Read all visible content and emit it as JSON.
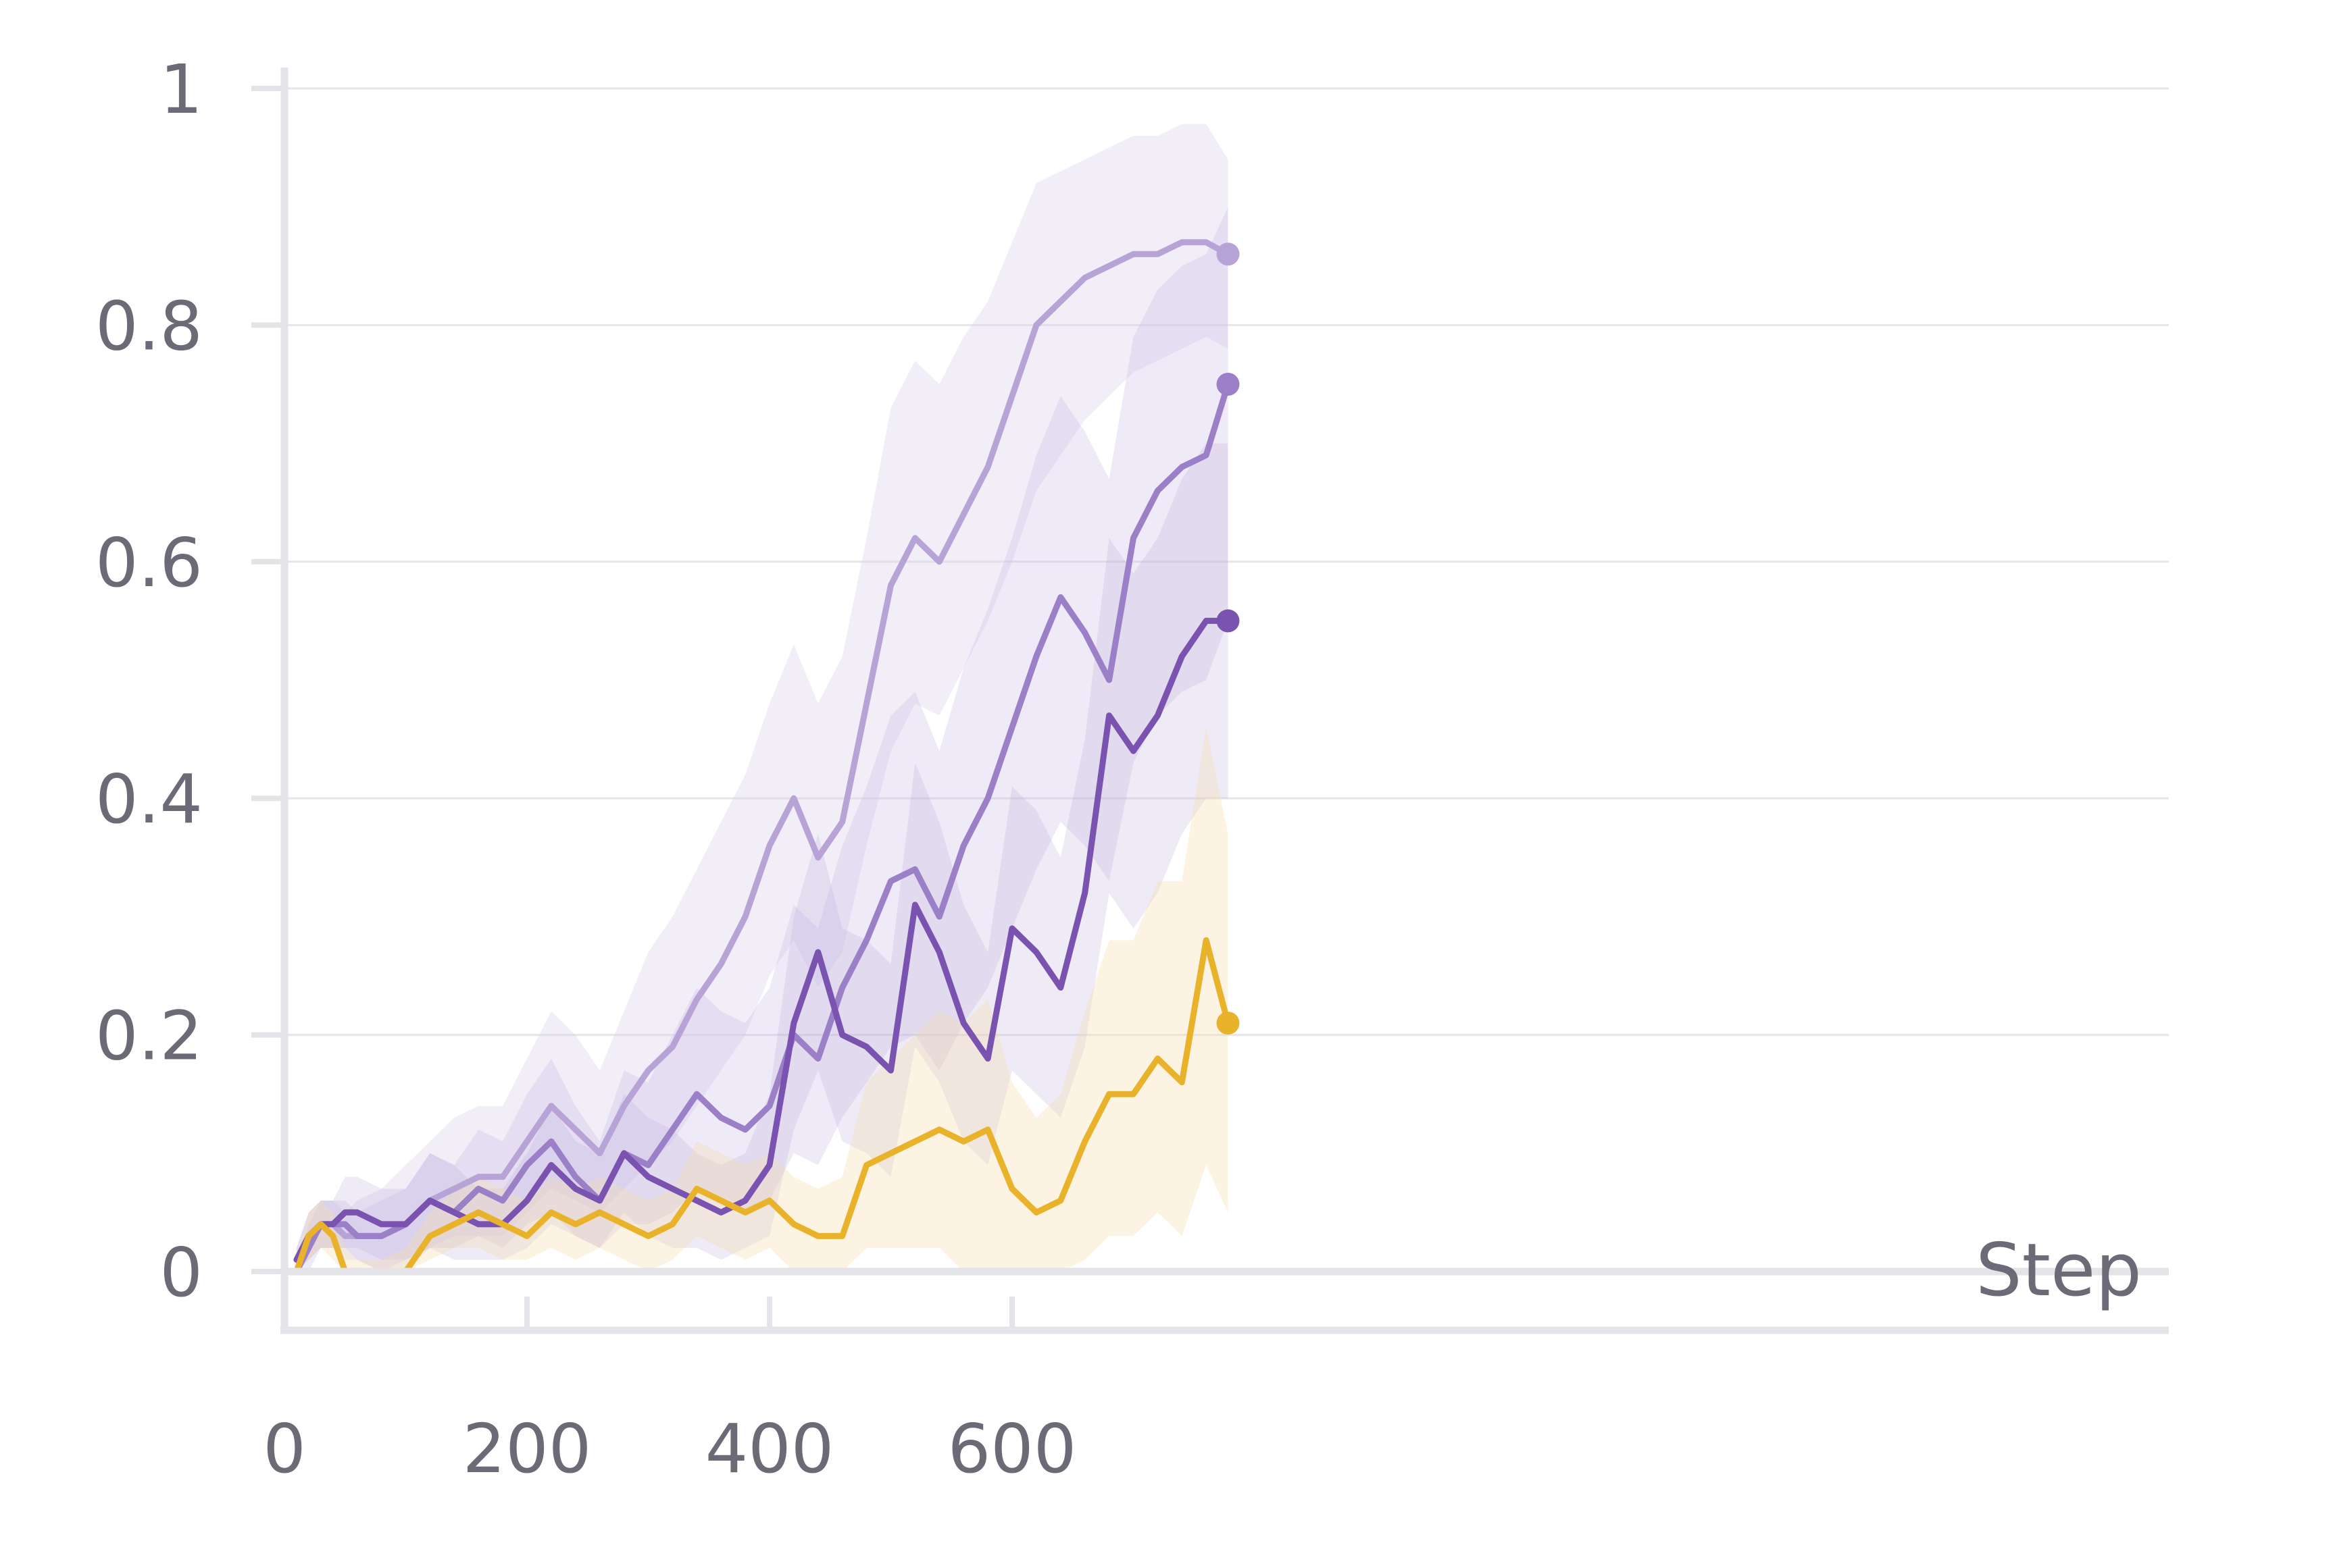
{
  "chart_data": {
    "type": "line",
    "xlabel": "Step",
    "ylabel": "",
    "xlim": [
      0,
      780
    ],
    "ylim": [
      -0.05,
      1.02
    ],
    "grid": "horizontal",
    "x_ticks": [
      0,
      200,
      400,
      600
    ],
    "y_ticks": [
      0,
      0.2,
      0.4,
      0.6,
      0.8,
      1
    ],
    "x_tick_labels": [
      "0",
      "200",
      "400",
      "600"
    ],
    "y_tick_labels": [
      "0",
      "0.2",
      "0.4",
      "0.6",
      "0.8",
      "1"
    ],
    "x": [
      10,
      20,
      30,
      40,
      50,
      60,
      80,
      100,
      120,
      140,
      160,
      180,
      200,
      220,
      240,
      260,
      280,
      300,
      320,
      340,
      360,
      380,
      400,
      420,
      440,
      460,
      480,
      500,
      520,
      540,
      560,
      580,
      600,
      620,
      640,
      660,
      680,
      700,
      720,
      740,
      760,
      778
    ],
    "series": [
      {
        "color": "#b7a3d6",
        "band_color": "#d8cdea",
        "band_opacity": 0.35,
        "y": [
          0.0,
          0.03,
          0.04,
          0.04,
          0.03,
          0.03,
          0.03,
          0.04,
          0.06,
          0.07,
          0.08,
          0.08,
          0.11,
          0.14,
          0.12,
          0.1,
          0.14,
          0.17,
          0.19,
          0.23,
          0.26,
          0.3,
          0.36,
          0.4,
          0.35,
          0.38,
          0.48,
          0.58,
          0.62,
          0.6,
          0.64,
          0.68,
          0.74,
          0.8,
          0.82,
          0.84,
          0.85,
          0.86,
          0.86,
          0.87,
          0.87,
          0.86
        ],
        "lower": [
          0.0,
          0.01,
          0.02,
          0.02,
          0.01,
          0.01,
          0.0,
          0.0,
          0.02,
          0.03,
          0.03,
          0.03,
          0.05,
          0.07,
          0.06,
          0.05,
          0.07,
          0.09,
          0.11,
          0.14,
          0.17,
          0.2,
          0.25,
          0.28,
          0.24,
          0.27,
          0.36,
          0.44,
          0.48,
          0.47,
          0.51,
          0.55,
          0.6,
          0.66,
          0.69,
          0.72,
          0.74,
          0.76,
          0.77,
          0.78,
          0.79,
          0.78
        ],
        "upper": [
          0.02,
          0.05,
          0.06,
          0.06,
          0.05,
          0.06,
          0.07,
          0.09,
          0.11,
          0.13,
          0.14,
          0.14,
          0.18,
          0.22,
          0.2,
          0.17,
          0.22,
          0.27,
          0.3,
          0.34,
          0.38,
          0.42,
          0.48,
          0.53,
          0.48,
          0.52,
          0.62,
          0.73,
          0.77,
          0.75,
          0.79,
          0.82,
          0.87,
          0.92,
          0.93,
          0.94,
          0.95,
          0.96,
          0.96,
          0.97,
          0.97,
          0.94
        ]
      },
      {
        "color": "#9b80c8",
        "band_color": "#cbbbe3",
        "band_opacity": 0.3,
        "y": [
          0.0,
          0.02,
          0.04,
          0.04,
          0.04,
          0.03,
          0.03,
          0.04,
          0.06,
          0.05,
          0.07,
          0.06,
          0.09,
          0.11,
          0.08,
          0.06,
          0.1,
          0.09,
          0.12,
          0.15,
          0.13,
          0.12,
          0.14,
          0.2,
          0.18,
          0.24,
          0.28,
          0.33,
          0.34,
          0.3,
          0.36,
          0.4,
          0.46,
          0.52,
          0.57,
          0.54,
          0.5,
          0.62,
          0.66,
          0.68,
          0.69,
          0.75
        ],
        "lower": [
          0.0,
          0.0,
          0.02,
          0.02,
          0.02,
          0.01,
          0.0,
          0.01,
          0.02,
          0.02,
          0.03,
          0.02,
          0.04,
          0.05,
          0.03,
          0.02,
          0.04,
          0.04,
          0.05,
          0.07,
          0.06,
          0.05,
          0.06,
          0.1,
          0.09,
          0.13,
          0.16,
          0.19,
          0.2,
          0.17,
          0.21,
          0.24,
          0.29,
          0.34,
          0.38,
          0.36,
          0.33,
          0.43,
          0.47,
          0.49,
          0.5,
          0.55
        ],
        "upper": [
          0.01,
          0.04,
          0.06,
          0.06,
          0.06,
          0.05,
          0.06,
          0.07,
          0.1,
          0.09,
          0.12,
          0.11,
          0.15,
          0.18,
          0.14,
          0.11,
          0.17,
          0.16,
          0.2,
          0.24,
          0.22,
          0.21,
          0.24,
          0.31,
          0.29,
          0.36,
          0.41,
          0.47,
          0.49,
          0.44,
          0.51,
          0.56,
          0.62,
          0.69,
          0.74,
          0.71,
          0.67,
          0.79,
          0.83,
          0.85,
          0.86,
          0.9
        ]
      },
      {
        "color": "#7a52b0",
        "band_color": "#b8a5d8",
        "band_opacity": 0.22,
        "y": [
          0.01,
          0.03,
          0.04,
          0.04,
          0.05,
          0.05,
          0.04,
          0.04,
          0.06,
          0.05,
          0.04,
          0.04,
          0.06,
          0.09,
          0.07,
          0.06,
          0.1,
          0.08,
          0.07,
          0.06,
          0.05,
          0.06,
          0.09,
          0.21,
          0.27,
          0.2,
          0.19,
          0.17,
          0.31,
          0.27,
          0.21,
          0.18,
          0.29,
          0.27,
          0.24,
          0.32,
          0.47,
          0.44,
          0.47,
          0.52,
          0.55,
          0.55
        ],
        "lower": [
          0.0,
          0.01,
          0.02,
          0.02,
          0.02,
          0.02,
          0.01,
          0.01,
          0.02,
          0.01,
          0.01,
          0.01,
          0.02,
          0.04,
          0.03,
          0.02,
          0.05,
          0.03,
          0.02,
          0.02,
          0.01,
          0.02,
          0.03,
          0.12,
          0.17,
          0.11,
          0.1,
          0.08,
          0.19,
          0.16,
          0.11,
          0.09,
          0.17,
          0.15,
          0.13,
          0.19,
          0.32,
          0.29,
          0.32,
          0.37,
          0.4,
          0.4
        ],
        "upper": [
          0.02,
          0.05,
          0.06,
          0.06,
          0.08,
          0.08,
          0.07,
          0.07,
          0.1,
          0.09,
          0.07,
          0.07,
          0.1,
          0.14,
          0.11,
          0.1,
          0.15,
          0.13,
          0.12,
          0.1,
          0.09,
          0.1,
          0.15,
          0.3,
          0.37,
          0.29,
          0.28,
          0.26,
          0.43,
          0.38,
          0.31,
          0.27,
          0.41,
          0.39,
          0.35,
          0.45,
          0.62,
          0.59,
          0.62,
          0.67,
          0.7,
          0.7
        ]
      },
      {
        "color": "#e9b22b",
        "band_color": "#f7deb0",
        "band_opacity": 0.35,
        "y": [
          0.0,
          0.03,
          0.04,
          0.03,
          0.0,
          0.0,
          0.0,
          0.0,
          0.03,
          0.04,
          0.05,
          0.04,
          0.03,
          0.05,
          0.04,
          0.05,
          0.04,
          0.03,
          0.04,
          0.07,
          0.06,
          0.05,
          0.06,
          0.04,
          0.03,
          0.03,
          0.09,
          0.1,
          0.11,
          0.12,
          0.11,
          0.12,
          0.07,
          0.05,
          0.06,
          0.11,
          0.15,
          0.15,
          0.18,
          0.16,
          0.28,
          0.21
        ],
        "lower": [
          0.0,
          0.01,
          0.02,
          0.01,
          0.0,
          0.0,
          0.0,
          0.0,
          0.01,
          0.02,
          0.02,
          0.01,
          0.01,
          0.02,
          0.01,
          0.02,
          0.01,
          0.0,
          0.01,
          0.03,
          0.02,
          0.01,
          0.02,
          0.0,
          0.0,
          0.0,
          0.02,
          0.02,
          0.02,
          0.02,
          0.0,
          0.0,
          0.0,
          0.0,
          0.0,
          0.01,
          0.03,
          0.03,
          0.05,
          0.03,
          0.09,
          0.05
        ],
        "upper": [
          0.01,
          0.05,
          0.06,
          0.05,
          0.02,
          0.01,
          0.01,
          0.02,
          0.05,
          0.07,
          0.08,
          0.07,
          0.06,
          0.08,
          0.07,
          0.08,
          0.07,
          0.06,
          0.07,
          0.11,
          0.1,
          0.09,
          0.1,
          0.08,
          0.07,
          0.08,
          0.16,
          0.18,
          0.2,
          0.22,
          0.21,
          0.23,
          0.16,
          0.13,
          0.15,
          0.22,
          0.28,
          0.28,
          0.33,
          0.33,
          0.46,
          0.37
        ]
      }
    ]
  }
}
